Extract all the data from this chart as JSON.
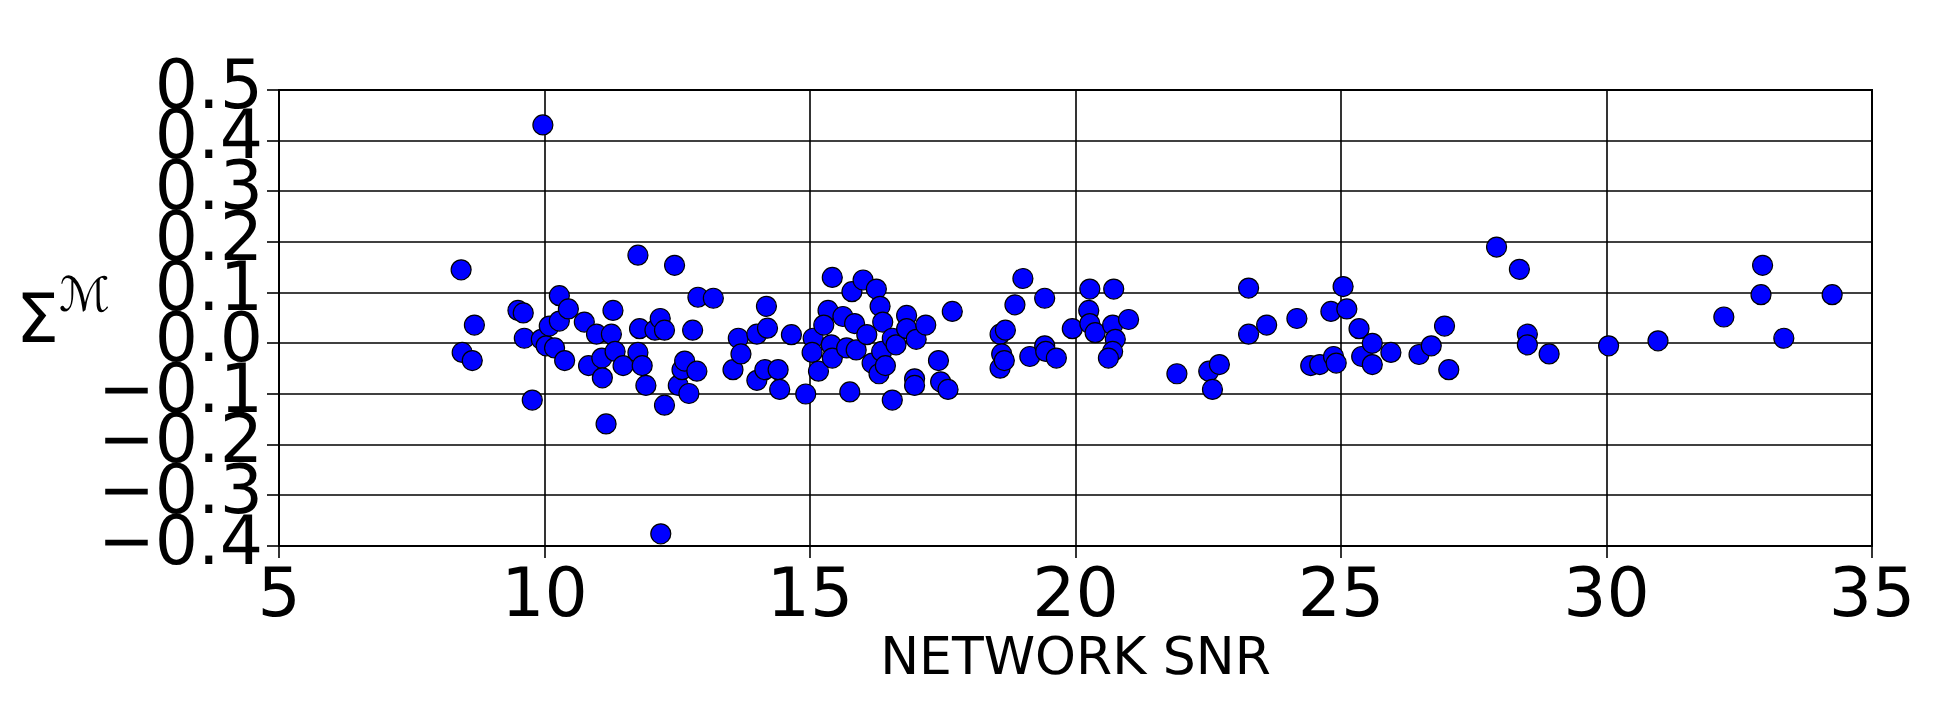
{
  "chart_data": {
    "type": "scatter",
    "xlabel": "NETWORK SNR",
    "ylabel": "Σ$^{ℳ}$",
    "xlim": [
      5,
      35
    ],
    "xticks": [
      5,
      10,
      15,
      20,
      25,
      30,
      35
    ],
    "ylim": [
      -0.4,
      0.5
    ],
    "yticks": [
      {
        "value": -0.4,
        "label": "−0.4"
      },
      {
        "value": -0.3,
        "label": "−0.3"
      },
      {
        "value": -0.2,
        "label": "−0.2"
      },
      {
        "value": -0.1,
        "label": "−0.1"
      },
      {
        "value": 0,
        "label": "0.0"
      },
      0.1,
      0.2,
      0.3,
      0.4,
      0.5
    ],
    "grid": true,
    "marker": "circle",
    "legend": false,
    "series": [
      {
        "color": "#0000ff",
        "x": [
          9.97,
          8.43,
          8.68,
          8.45,
          8.64,
          9.5,
          9.6,
          9.62,
          9.77,
          9.94,
          10.03,
          10.09,
          10.19,
          10.28,
          10.28,
          10.38,
          10.45,
          10.75,
          10.83,
          10.98,
          11.08,
          11.09,
          11.16,
          11.26,
          11.29,
          11.33,
          11.48,
          11.76,
          11.76,
          11.79,
          11.84,
          11.91,
          12.08,
          12.18,
          12.19,
          12.26,
          12.26,
          12.45,
          12.52,
          12.59,
          12.64,
          12.72,
          12.79,
          12.87,
          12.89,
          13.18,
          13.55,
          13.65,
          13.7,
          14.0,
          14.0,
          14.18,
          14.2,
          14.15,
          14.4,
          14.43,
          14.65,
          14.92,
          15.06,
          15.04,
          15.16,
          15.34,
          15.26,
          15.42,
          15.4,
          15.42,
          15.62,
          15.69,
          15.75,
          15.79,
          15.84,
          15.87,
          16.0,
          16.07,
          16.17,
          16.25,
          16.32,
          16.35,
          16.37,
          16.3,
          16.42,
          16.55,
          16.55,
          16.62,
          16.82,
          16.82,
          16.97,
          17.0,
          16.97,
          17.18,
          17.42,
          17.46,
          17.6,
          17.68,
          18.58,
          18.61,
          18.58,
          18.68,
          18.66,
          18.86,
          19.01,
          19.14,
          19.42,
          19.42,
          19.44,
          19.64,
          19.94,
          20.25,
          20.27,
          20.27,
          20.37,
          20.72,
          20.7,
          20.75,
          20.7,
          20.62,
          21.0,
          21.91,
          22.51,
          22.58,
          22.71,
          23.26,
          23.26,
          23.6,
          24.17,
          24.43,
          24.6,
          24.86,
          24.81,
          25.04,
          25.11,
          24.91,
          25.34,
          25.39,
          25.59,
          25.59,
          25.94,
          26.47,
          26.7,
          26.95,
          27.03,
          27.93,
          28.36,
          28.51,
          28.51,
          28.92,
          30.04,
          30.97,
          32.21,
          32.94,
          32.91,
          33.34,
          34.25
        ],
        "values": [
          0.431,
          0.145,
          0.036,
          -0.018,
          -0.034,
          0.065,
          0.06,
          0.01,
          -0.112,
          0.008,
          -0.005,
          0.034,
          -0.009,
          0.094,
          0.044,
          -0.034,
          0.068,
          0.042,
          -0.044,
          0.018,
          -0.029,
          -0.068,
          -0.159,
          0.018,
          0.065,
          -0.016,
          -0.044,
          0.174,
          -0.018,
          0.029,
          -0.044,
          -0.083,
          0.026,
          0.049,
          -0.376,
          0.026,
          -0.122,
          0.154,
          -0.083,
          -0.052,
          -0.035,
          -0.099,
          0.026,
          -0.055,
          0.091,
          0.089,
          -0.052,
          0.01,
          -0.021,
          0.018,
          -0.073,
          0.073,
          0.03,
          -0.052,
          -0.052,
          -0.091,
          0.017,
          -0.1,
          0.01,
          -0.018,
          -0.055,
          0.065,
          0.036,
          0.13,
          -0.003,
          -0.029,
          0.053,
          -0.009,
          -0.096,
          0.102,
          0.039,
          -0.013,
          0.125,
          0.017,
          -0.039,
          0.107,
          0.073,
          -0.016,
          0.042,
          -0.06,
          -0.044,
          -0.112,
          0.01,
          -0.003,
          0.055,
          0.029,
          -0.07,
          0.008,
          -0.083,
          0.036,
          -0.034,
          -0.076,
          -0.091,
          0.063,
          0.018,
          -0.021,
          -0.049,
          0.026,
          -0.034,
          0.076,
          0.128,
          -0.026,
          0.089,
          -0.005,
          -0.016,
          -0.029,
          0.029,
          0.065,
          0.107,
          0.039,
          0.021,
          0.107,
          0.036,
          0.008,
          -0.016,
          -0.029,
          0.047,
          -0.06,
          -0.055,
          -0.091,
          -0.042,
          0.109,
          0.018,
          0.036,
          0.049,
          -0.044,
          -0.042,
          -0.026,
          0.063,
          0.112,
          0.068,
          -0.039,
          0.029,
          -0.026,
          0.0,
          -0.042,
          -0.018,
          -0.022,
          -0.005,
          0.034,
          -0.052,
          0.19,
          0.146,
          0.018,
          -0.003,
          -0.021,
          -0.005,
          0.005,
          0.052,
          0.154,
          0.096,
          0.01,
          0.096
        ]
      }
    ]
  }
}
